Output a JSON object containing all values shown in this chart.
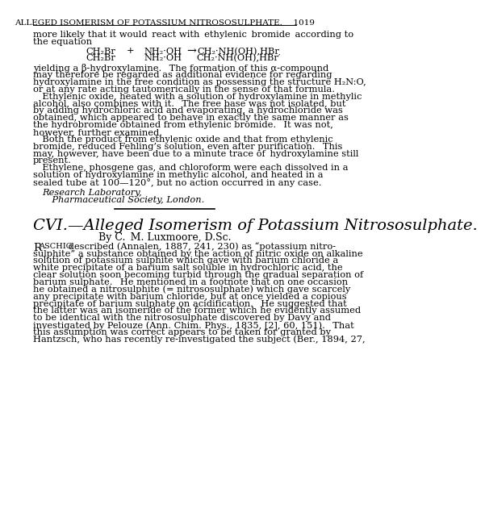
{
  "bg_color": "#ffffff",
  "header_text": "ALLEGED ISOMERISM OF POTASSIUM NITROSOSULPHATE.  1019",
  "header_fontsize": 7.5,
  "body_fontsize": 8.2,
  "section_title_fontsize": 14.0,
  "section_subtitle_fontsize": 9.0,
  "line1": "more likely that it would react with ethylenic bromide according to",
  "line2": "the equation",
  "paragraphs_top": [
    "yielding a β-hydroxylamine.  The formation of this α-compound",
    "may therefore be regarded as additional evidence for regarding",
    "hydroxylamine in the free condition as possessing the structure H₂N:O,",
    "or at any rate acting tautomerically in the sense of that formula.",
    " Ethylenic oxide, heated with a solution of hydroxylamine in methylic",
    "alcohol, also combines with it.  The free base was not isolated, but",
    "by adding hydrochloric acid and evaporating, a hydrochloride was",
    "obtained, which appeared to behave in exactly the same manner as",
    "the hydrobromide obtained from ethylenic bromide.  It was not,",
    "however, further examined.",
    " Both the product from ethylenic oxide and that from ethylenic",
    "bromide, reduced Fehling’s solution, even after purification.  This",
    "may, however, have been due to a minute trace of hydroxylamine still",
    "present.",
    " Ethylene, phosgene gas, and chloroform were each dissolved in a",
    "solution of hydroxylamine in methylic alcohol, and heated in a",
    "sealed tube at 100—120°, but no action occurred in any case."
  ],
  "italic_lines": [
    "Research Laboratory,",
    " Pharmaceutical Society, London."
  ],
  "section_number": "CVI.",
  "section_title": "—Alleged Isomerism of Potassium Nitrososulphate.",
  "section_subtitle": "By C. M. Luxmoore, D.Sc.",
  "paragraphs_bottom": [
    " described (Annalen, 1887, 241, 230) as “potassium nitro-",
    "sulphite” a substance obtained by the action of nitric oxide on alkaline",
    "solution of potassium sulphite which gave with barium chloride a",
    "white precipitate of a barium salt soluble in hydrochloric acid, the",
    "clear solution soon becoming turbid through the gradual separation of",
    "barium sulphate.  He mentioned in a footnote that on one occasion",
    "he obtained a nitrosulphite (= nitrososulphate) which gave scarcely",
    "any precipitate with barium chloride, but at once yielded a copious",
    "precipitate of barium sulphate on acidification.  He suggested that",
    "the latter was an isomeride of the former which he evidently assumed",
    "to be identical with the nitrososulphate discovered by Davy and",
    "investigated by Pelouze (Ann. Chim. Phys., 1835, [2], 60, 151).  That",
    "this assumption was correct appears to be taken for granted by",
    "Hantzsch, who has recently re-investigated the subject (Ber., 1894, 27,"
  ]
}
